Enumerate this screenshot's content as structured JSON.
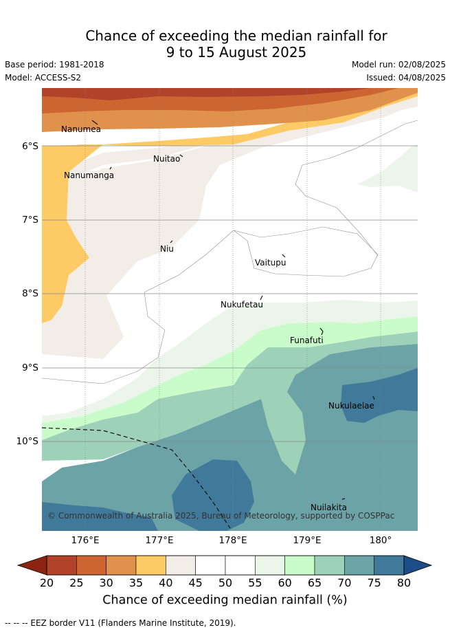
{
  "title_line1": "Chance of exceeding the median rainfall for",
  "title_line2": "9 to 15 August 2025",
  "base_period": "Base period: 1981-2018",
  "model": "Model: ACCESS-S2",
  "model_run": "Model run: 02/08/2025",
  "issued": "Issued: 04/08/2025",
  "lat_labels": [
    "6°S",
    "7°S",
    "8°S",
    "9°S",
    "10°S"
  ],
  "lon_labels": [
    "176°E",
    "177°E",
    "178°E",
    "179°E",
    "180°"
  ],
  "places": [
    {
      "name": "Nanumea"
    },
    {
      "name": "Nuitao"
    },
    {
      "name": "Nanumanga"
    },
    {
      "name": "Niu"
    },
    {
      "name": "Vaitupu"
    },
    {
      "name": "Nukufetau"
    },
    {
      "name": "Funafuti"
    },
    {
      "name": "Nukulaelae"
    },
    {
      "name": "Nuilakita"
    }
  ],
  "credit": "© Commonwealth of Australia 2025, Bureau of Meteorology, supported by COSPPac",
  "colorbar": {
    "ticks": [
      "20",
      "25",
      "30",
      "35",
      "40",
      "45",
      "50",
      "55",
      "60",
      "65",
      "70",
      "75",
      "80"
    ],
    "colors": [
      "#8b2512",
      "#b0432a",
      "#cc6532",
      "#e0924c",
      "#fdca66",
      "#f2ede7",
      "#ffffff",
      "#ffffff",
      "#ebf5ea",
      "#cafccb",
      "#9dd1b8",
      "#6ca3a6",
      "#41799a",
      "#1b4e88"
    ],
    "label": "Chance of exceeding median rainfall (%)"
  },
  "eez_note": "-- -- -- EEZ border V11 (Flanders Marine Institute, 2019)."
}
